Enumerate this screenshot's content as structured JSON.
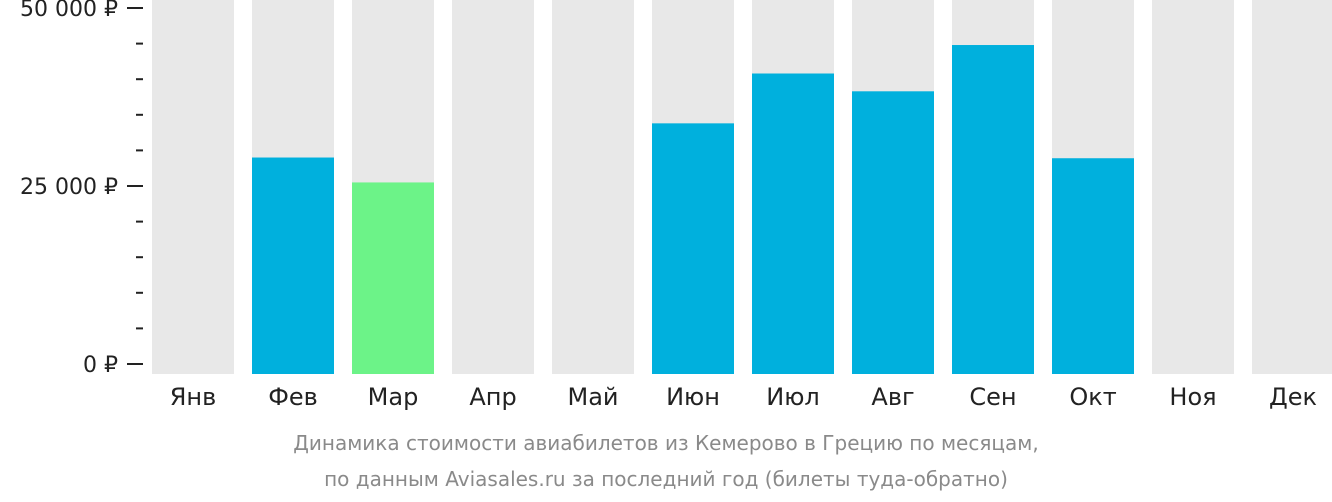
{
  "chart_data": {
    "type": "bar",
    "categories": [
      "Янв",
      "Фев",
      "Мар",
      "Апр",
      "Май",
      "Июн",
      "Июл",
      "Авг",
      "Сен",
      "Окт",
      "Ноя",
      "Дек"
    ],
    "values": [
      null,
      29000,
      25500,
      null,
      null,
      33800,
      40800,
      38300,
      44800,
      28900,
      null,
      null
    ],
    "highlight_category": "Мар",
    "y_ticks": [
      {
        "value": 0,
        "label": "0 ₽"
      },
      {
        "value": 25000,
        "label": "25 000 ₽"
      },
      {
        "value": 50000,
        "label": "50 000 ₽"
      }
    ],
    "ylim": [
      0,
      50000
    ],
    "minor_tick_step": 5000,
    "grid": false,
    "legend": "none",
    "xlabel": "",
    "ylabel": "",
    "colors": {
      "bar": "#00b0dd",
      "highlight_bar": "#6cf388",
      "background_column": "#e8e8e8",
      "axis": "#222222",
      "caption": "#8a8a8a"
    }
  },
  "caption": {
    "line1": "Динамика стоимости авиабилетов из Кемерово в Грецию по месяцам,",
    "line2": "по данным Aviasales.ru за последний год (билеты туда-обратно)"
  }
}
